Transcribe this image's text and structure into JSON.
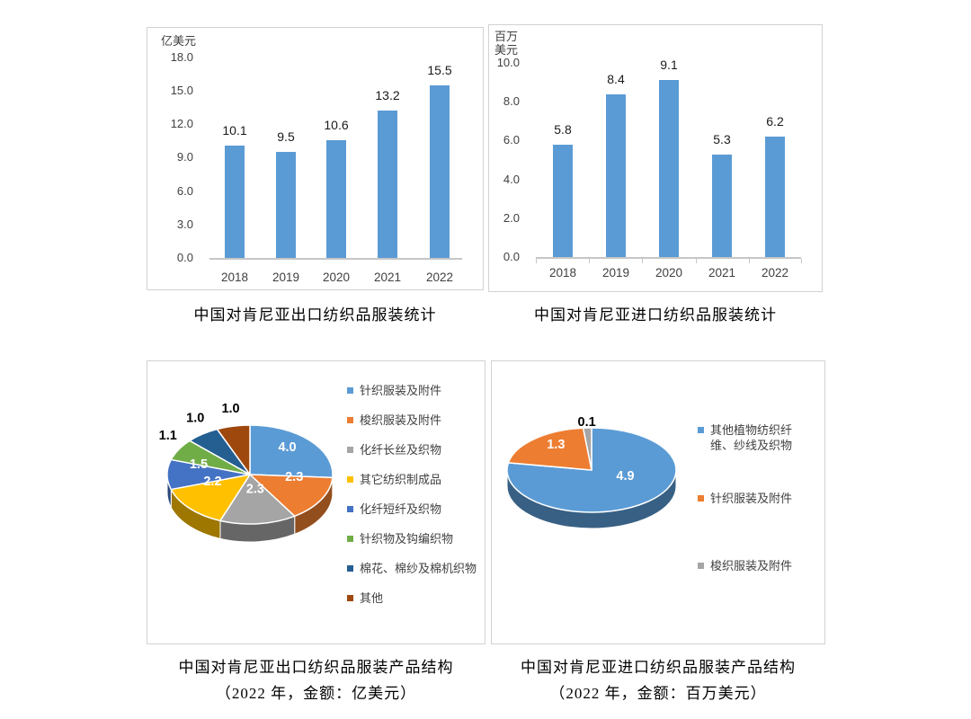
{
  "chart_data": [
    {
      "id": "export-bar",
      "type": "bar",
      "title": "中国对肯尼亚出口纺织品服装统计",
      "unit_lines": [
        "亿美元"
      ],
      "categories": [
        "2018",
        "2019",
        "2020",
        "2021",
        "2022"
      ],
      "values": [
        10.1,
        9.5,
        10.6,
        13.2,
        15.5
      ],
      "y_ticks": [
        "0.0",
        "3.0",
        "6.0",
        "9.0",
        "12.0",
        "15.0",
        "18.0"
      ],
      "ylim": [
        0,
        18
      ],
      "bar_color": "#5B9BD5",
      "grid": false,
      "legend_position": "none"
    },
    {
      "id": "import-bar",
      "type": "bar",
      "title": "中国对肯尼亚进口纺织品服装统计",
      "unit_lines": [
        "百万",
        "美元"
      ],
      "categories": [
        "2018",
        "2019",
        "2020",
        "2021",
        "2022"
      ],
      "values": [
        5.8,
        8.4,
        9.1,
        5.3,
        6.2
      ],
      "y_ticks": [
        "0.0",
        "2.0",
        "4.0",
        "6.0",
        "8.0",
        "10.0"
      ],
      "ylim": [
        0,
        10
      ],
      "bar_color": "#5B9BD5",
      "grid": false,
      "legend_position": "none"
    },
    {
      "id": "export-pie",
      "type": "pie",
      "title_lines": [
        "中国对肯尼亚出口纺织品服装产品结构",
        "（2022 年，金额：亿美元）"
      ],
      "legend_position": "right",
      "slices": [
        {
          "label": "针织服装及附件",
          "value": 4.0,
          "color": "#5B9BD5"
        },
        {
          "label": "梭织服装及附件",
          "value": 2.3,
          "color": "#ED7D31"
        },
        {
          "label": "化纤长丝及织物",
          "value": 2.3,
          "color": "#A5A5A5"
        },
        {
          "label": "其它纺织制成品",
          "value": 2.2,
          "color": "#FFC000"
        },
        {
          "label": "化纤短纤及织物",
          "value": 1.5,
          "color": "#4472C4"
        },
        {
          "label": "针织物及钩编织物",
          "value": 1.1,
          "color": "#70AD47"
        },
        {
          "label": "棉花、棉纱及棉机织物",
          "value": 1.0,
          "color": "#255E91"
        },
        {
          "label": "其他",
          "value": 1.0,
          "color": "#9E480E"
        }
      ]
    },
    {
      "id": "import-pie",
      "type": "pie",
      "title_lines": [
        "中国对肯尼亚进口纺织品服装产品结构",
        "（2022 年，金额：百万美元）"
      ],
      "legend_position": "right",
      "slices": [
        {
          "label": "其他植物纺织纤维、纱线及织物",
          "value": 4.9,
          "color": "#5B9BD5"
        },
        {
          "label": "针织服装及附件",
          "value": 1.3,
          "color": "#ED7D31"
        },
        {
          "label": "梭织服装及附件",
          "value": 0.1,
          "color": "#A5A5A5"
        }
      ]
    }
  ]
}
